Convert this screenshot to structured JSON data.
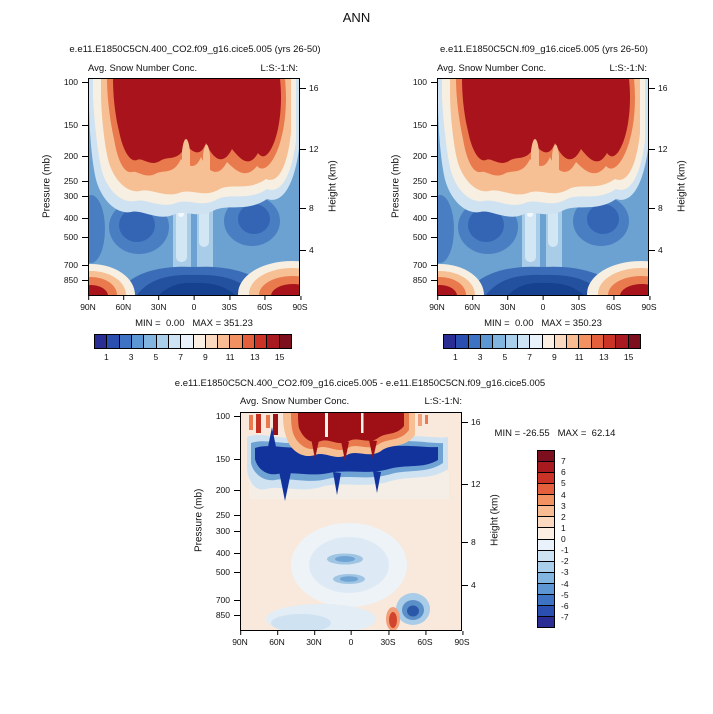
{
  "page_title": "ANN",
  "panels": [
    {
      "title": "e.e11.E1850C5CN.400_CO2.f09_g16.cice5.005 (yrs 26-50)",
      "subtitle_left": "Avg. Snow Number Conc.",
      "subtitle_right": "L:S:-1:N:",
      "ylabel_left": "Pressure (mb)",
      "ylabel_right": "Height (km)",
      "stats": "MIN =  0.00   MAX = 351.23"
    },
    {
      "title": "e.e11.E1850C5CN.f09_g16.cice5.005 (yrs 26-50)",
      "subtitle_left": "Avg. Snow Number Conc.",
      "subtitle_right": "L:S:-1:N:",
      "ylabel_left": "Pressure (mb)",
      "ylabel_right": "Height (km)",
      "stats": "MIN =  0.00   MAX = 350.23"
    },
    {
      "title": "e.e11.E1850C5CN.400_CO2.f09_g16.cice5.005 - e.e11.E1850C5CN.f09_g16.cice5.005",
      "subtitle_left": "Avg. Snow Number Conc.",
      "subtitle_right": "L:S:-1:N:",
      "ylabel_left": "Pressure (mb)",
      "ylabel_right": "Height (km)",
      "stats": "MIN = -26.55   MAX =  62.14"
    }
  ],
  "axes": {
    "pressure_ticks": [
      "100",
      "150",
      "200",
      "250",
      "300",
      "400",
      "500",
      "700",
      "850"
    ],
    "pressure_frac": [
      0.02,
      0.217,
      0.359,
      0.475,
      0.548,
      0.65,
      0.737,
      0.866,
      0.935
    ],
    "height_ticks": [
      "16",
      "12",
      "8",
      "4"
    ],
    "height_frac": [
      0.045,
      0.33,
      0.6,
      0.795
    ],
    "lat_ticks": [
      "90N",
      "60N",
      "30N",
      "0",
      "30S",
      "60S",
      "90S"
    ],
    "lat_frac": [
      0,
      0.1667,
      0.3333,
      0.5,
      0.6667,
      0.8333,
      1
    ]
  },
  "colorbars": {
    "main": {
      "colors": [
        "#2a2e94",
        "#2a4fb0",
        "#3e73c4",
        "#5c96d3",
        "#82b5e0",
        "#aacfeb",
        "#cde3f3",
        "#e9f2fa",
        "#fbeee3",
        "#fbd9c0",
        "#f9bb92",
        "#f29263",
        "#e4603c",
        "#cb3327",
        "#a81a20",
        "#7d0e1d"
      ],
      "labels": [
        "1",
        "3",
        "5",
        "7",
        "9",
        "11",
        "13",
        "15"
      ],
      "label_boundaries": [
        1,
        3,
        5,
        7,
        9,
        11,
        13,
        15
      ]
    },
    "diff": {
      "colors": [
        "#7d0e1d",
        "#a81a20",
        "#cb3327",
        "#e4603c",
        "#f29263",
        "#f9bb92",
        "#fbd9c0",
        "#fbeee3",
        "#e9f2fa",
        "#cde3f3",
        "#aacfeb",
        "#82b5e0",
        "#5c96d3",
        "#3e73c4",
        "#2a4fb0",
        "#2a2e94"
      ],
      "labels": [
        "7",
        "6",
        "5",
        "4",
        "3",
        "2",
        "1",
        "0",
        "-1",
        "-2",
        "-3",
        "-4",
        "-5",
        "-6",
        "-7"
      ],
      "label_boundaries": [
        1,
        2,
        3,
        4,
        5,
        6,
        7,
        8,
        9,
        10,
        11,
        12,
        13,
        14,
        15
      ]
    }
  },
  "chart_data": [
    {
      "type": "heatmap",
      "variant": "filled_contour_latitude_pressure",
      "panel": "case1",
      "title": "e.e11.E1850C5CN.400_CO2.f09_g16.cice5.005 (yrs 26-50)",
      "field": "Avg. Snow Number Conc.",
      "x_ticks": [
        "90N",
        "60N",
        "30N",
        "0",
        "30S",
        "60S",
        "90S"
      ],
      "y_left_label": "Pressure (mb)",
      "y_left_ticks": [
        100,
        150,
        200,
        250,
        300,
        400,
        500,
        700,
        850
      ],
      "y_right_label": "Height (km)",
      "y_right_ticks": [
        16,
        12,
        8,
        4
      ],
      "min": 0.0,
      "max": 351.23,
      "contour_levels": [
        1,
        2,
        3,
        4,
        5,
        6,
        7,
        8,
        9,
        10,
        11,
        12,
        13,
        14,
        15
      ],
      "legend_position": "horizontal colorbar below panel",
      "features": [
        "values above 15 (dark red) fill a broad band ~100-250 mb across nearly all latitudes",
        "low values (blue, <5) through 300-850 mb at most latitudes",
        "pale low-value columns near the equator extending downward from ~250 mb",
        "high-value red pockets at ~850 mb near 90N and between 60S and 90S"
      ]
    },
    {
      "type": "heatmap",
      "variant": "filled_contour_latitude_pressure",
      "panel": "case2",
      "title": "e.e11.E1850C5CN.f09_g16.cice5.005 (yrs 26-50)",
      "field": "Avg. Snow Number Conc.",
      "x_ticks": [
        "90N",
        "60N",
        "30N",
        "0",
        "30S",
        "60S",
        "90S"
      ],
      "y_left_label": "Pressure (mb)",
      "y_left_ticks": [
        100,
        150,
        200,
        250,
        300,
        400,
        500,
        700,
        850
      ],
      "y_right_label": "Height (km)",
      "y_right_ticks": [
        16,
        12,
        8,
        4
      ],
      "min": 0.0,
      "max": 350.23,
      "contour_levels": [
        1,
        2,
        3,
        4,
        5,
        6,
        7,
        8,
        9,
        10,
        11,
        12,
        13,
        14,
        15
      ],
      "legend_position": "horizontal colorbar below panel",
      "features": [
        "pattern nearly identical to case1: dark red band 100-250 mb, blue lower troposphere, red pockets at 850 mb near poles"
      ]
    },
    {
      "type": "heatmap",
      "variant": "filled_contour_latitude_pressure_difference",
      "panel": "difference (case1 - case2)",
      "title": "e.e11.E1850C5CN.400_CO2.f09_g16.cice5.005 - e.e11.E1850C5CN.f09_g16.cice5.005",
      "field": "Avg. Snow Number Conc.",
      "x_ticks": [
        "90N",
        "60N",
        "30N",
        "0",
        "30S",
        "60S",
        "90S"
      ],
      "y_left_label": "Pressure (mb)",
      "y_left_ticks": [
        100,
        150,
        200,
        250,
        300,
        400,
        500,
        700,
        850
      ],
      "y_right_label": "Height (km)",
      "y_right_ticks": [
        16,
        12,
        8,
        4
      ],
      "min": -26.55,
      "max": 62.14,
      "contour_levels": [
        -7,
        -6,
        -5,
        -4,
        -3,
        -2,
        -1,
        0,
        1,
        2,
        3,
        4,
        5,
        6,
        7
      ],
      "legend_position": "vertical colorbar right of panel",
      "features": [
        "strong positive differences (dark red, >7) near 100-150 mb roughly between 40N and 40S",
        "strong negative band (dark blue, <-7) near 200-250 mb across most latitudes",
        "weak positive (pale pink) over most of the lower troposphere",
        "weak negative patches near the equator at 450-650 mb and a negative blob near 60S at 700-850 mb"
      ]
    }
  ]
}
